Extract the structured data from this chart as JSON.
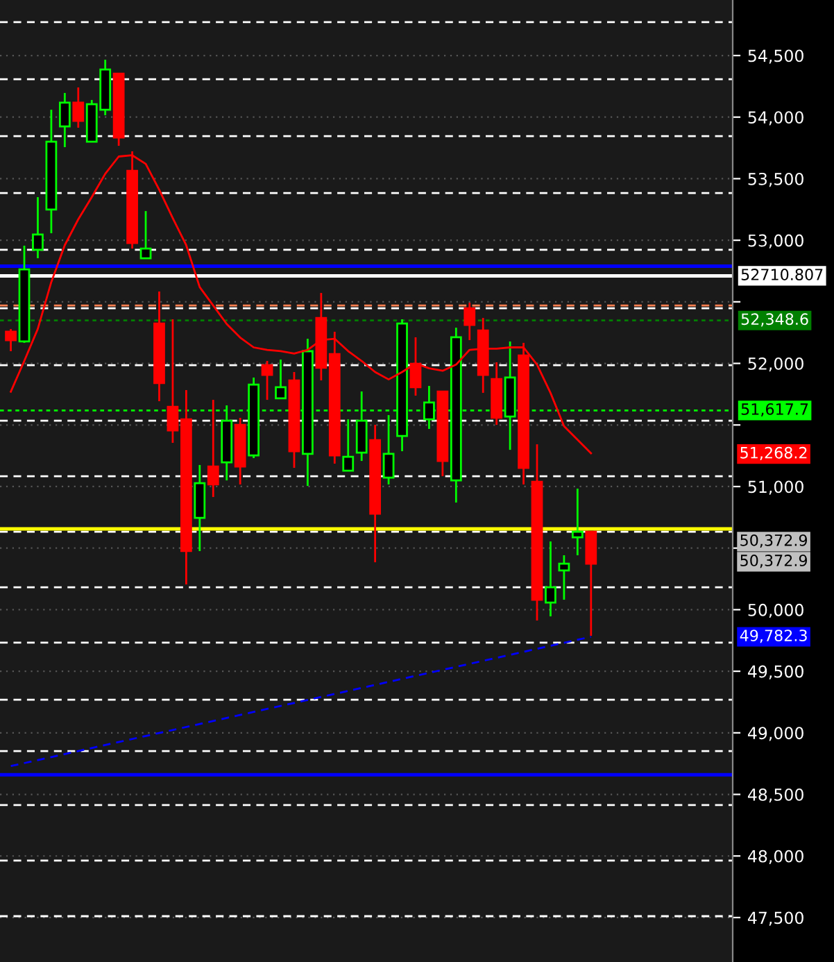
{
  "chart_data": {
    "type": "candlestick",
    "categories": [
      null,
      null,
      null,
      null,
      null,
      null,
      null,
      null,
      null,
      null,
      null,
      null,
      null,
      null,
      null,
      null,
      null,
      null,
      null,
      null,
      null,
      null,
      null,
      null,
      null,
      null,
      null,
      null,
      null,
      null,
      null,
      null,
      null,
      null,
      null,
      null,
      null,
      null,
      null,
      null,
      null,
      null,
      null,
      null,
      null,
      null,
      null,
      null,
      null,
      null,
      null,
      null,
      null,
      null
    ],
    "ohlc": [
      [
        52257,
        52279,
        52099,
        52189
      ],
      [
        52178,
        52956,
        52167,
        52764
      ],
      [
        52922,
        53350,
        52854,
        53046
      ],
      [
        53249,
        54060,
        53057,
        53801
      ],
      [
        53925,
        54196,
        53756,
        54117
      ],
      [
        54117,
        54241,
        53914,
        53970
      ],
      [
        53801,
        54139,
        53801,
        54105
      ],
      [
        54060,
        54466,
        54015,
        54387
      ],
      [
        54353,
        54353,
        53767,
        53835
      ],
      [
        53564,
        53722,
        52933,
        52978
      ],
      [
        52854,
        53237,
        52854,
        52933
      ],
      [
        52324,
        52584,
        51693,
        51840
      ],
      [
        51648,
        52358,
        51355,
        51456
      ],
      [
        51546,
        51783,
        50205,
        50476
      ],
      [
        50746,
        51175,
        50476,
        51028
      ],
      [
        51163,
        51704,
        50915,
        51017
      ],
      [
        51197,
        51659,
        51050,
        51535
      ],
      [
        51501,
        51558,
        51017,
        51163
      ],
      [
        51253,
        51885,
        51231,
        51828
      ],
      [
        51986,
        52020,
        51704,
        51907
      ],
      [
        51716,
        52031,
        51716,
        51806
      ],
      [
        51862,
        51930,
        51152,
        51287
      ],
      [
        51265,
        52200,
        51005,
        52099
      ],
      [
        52369,
        52572,
        51862,
        51964
      ],
      [
        52076,
        52257,
        51186,
        51253
      ],
      [
        51129,
        51546,
        51129,
        51242
      ],
      [
        51276,
        51772,
        51208,
        51535
      ],
      [
        51377,
        51501,
        50385,
        50780
      ],
      [
        51073,
        51580,
        51017,
        51265
      ],
      [
        51411,
        52358,
        51287,
        52324
      ],
      [
        51997,
        52212,
        51738,
        51806
      ],
      [
        51546,
        51817,
        51468,
        51682
      ],
      [
        51772,
        51772,
        51084,
        51208
      ],
      [
        51050,
        52290,
        50870,
        52212
      ],
      [
        52448,
        52493,
        52189,
        52313
      ],
      [
        52268,
        52369,
        51761,
        51907
      ],
      [
        51873,
        52009,
        51501,
        51558
      ],
      [
        51569,
        52178,
        51298,
        51885
      ],
      [
        52065,
        52167,
        51017,
        51152
      ],
      [
        51039,
        51343,
        49912,
        50081
      ],
      [
        50058,
        50554,
        49946,
        50182
      ],
      [
        50318,
        50442,
        50081,
        50374
      ],
      [
        50588,
        50983,
        50442,
        50633
      ],
      [
        50633,
        50633,
        49788,
        50373
      ],
      null,
      null,
      null,
      null,
      null,
      null,
      null,
      null,
      null,
      null
    ],
    "series": [
      {
        "type": "line",
        "color": "#ff0000",
        "values": [
          51770,
          52020,
          52280,
          52660,
          52960,
          53170,
          53350,
          53540,
          53680,
          53690,
          53620,
          53410,
          53180,
          52960,
          52620,
          52470,
          52320,
          52210,
          52130,
          52110,
          52100,
          52080,
          52110,
          52190,
          52200,
          52100,
          52020,
          51930,
          51870,
          51930,
          52000,
          51960,
          51940,
          51990,
          52110,
          52120,
          52120,
          52130,
          52130,
          51990,
          51760,
          51490,
          51380,
          51270,
          null,
          null,
          null,
          null,
          null,
          null,
          null,
          null,
          null,
          null
        ]
      },
      {
        "type": "line",
        "color": "#0000ff",
        "line_style": "dashed",
        "values": [
          48730,
          null,
          null,
          null,
          null,
          null,
          null,
          null,
          null,
          null,
          null,
          null,
          null,
          null,
          null,
          null,
          null,
          null,
          null,
          null,
          null,
          null,
          null,
          null,
          null,
          null,
          null,
          null,
          null,
          null,
          null,
          null,
          null,
          null,
          null,
          null,
          null,
          null,
          null,
          null,
          null,
          null,
          null,
          49780,
          null,
          null,
          null,
          null,
          null,
          null,
          null,
          null,
          null,
          null
        ]
      }
    ],
    "ylim": [
      47139,
      54951
    ],
    "yticks": [
      {
        "value": 47500,
        "label": "47,500"
      },
      {
        "value": 48000,
        "label": "48,000"
      },
      {
        "value": 48500,
        "label": "48,500"
      },
      {
        "value": 49000,
        "label": "49,000"
      },
      {
        "value": 49500,
        "label": "49,500"
      },
      {
        "value": 50000,
        "label": "50,000"
      },
      {
        "value": 50500,
        "label": null
      },
      {
        "value": 51000,
        "label": "51,000"
      },
      {
        "value": 51500,
        "label": null
      },
      {
        "value": 52000,
        "label": "52,000"
      },
      {
        "value": 52500,
        "label": null
      },
      {
        "value": 53000,
        "label": "53,000"
      },
      {
        "value": 53500,
        "label": "53,500"
      },
      {
        "value": 54000,
        "label": "54,000"
      },
      {
        "value": 54500,
        "label": "54,500"
      }
    ],
    "grid": "y",
    "tick_labels": "y",
    "ref_lines": [
      {
        "axis": "y",
        "value": 54771,
        "color": "#ffffff",
        "line_style": "dashed"
      },
      {
        "axis": "y",
        "value": 54308,
        "color": "#ffffff",
        "line_style": "dashed"
      },
      {
        "axis": "y",
        "value": 53846,
        "color": "#ffffff",
        "line_style": "dashed"
      },
      {
        "axis": "y",
        "value": 53384,
        "color": "#ffffff",
        "line_style": "dashed"
      },
      {
        "axis": "y",
        "value": 52922,
        "color": "#ffffff",
        "line_style": "dashed"
      },
      {
        "axis": "y",
        "value": 52448,
        "color": "#ffffff",
        "line_style": "dashed"
      },
      {
        "axis": "y",
        "value": 51986,
        "color": "#ffffff",
        "line_style": "dashed"
      },
      {
        "axis": "y",
        "value": 51535,
        "color": "#ffffff",
        "line_style": "dashed"
      },
      {
        "axis": "y",
        "value": 51084,
        "color": "#ffffff",
        "line_style": "dashed"
      },
      {
        "axis": "y",
        "value": 50633,
        "color": "#ffffff",
        "line_style": "dashed"
      },
      {
        "axis": "y",
        "value": 50182,
        "color": "#ffffff",
        "line_style": "dashed"
      },
      {
        "axis": "y",
        "value": 49732,
        "color": "#ffffff",
        "line_style": "dashed"
      },
      {
        "axis": "y",
        "value": 49269,
        "color": "#ffffff",
        "line_style": "dashed"
      },
      {
        "axis": "y",
        "value": 48852,
        "color": "#ffffff",
        "line_style": "dashed"
      },
      {
        "axis": "y",
        "value": 48413,
        "color": "#ffffff",
        "line_style": "dashed"
      },
      {
        "axis": "y",
        "value": 47962,
        "color": "#ffffff",
        "line_style": "dashed"
      },
      {
        "axis": "y",
        "value": 47511,
        "color": "#ffffff",
        "line_style": "dashed"
      },
      {
        "axis": "y",
        "value": 52470,
        "color": "#ff7f50",
        "line_style": "dashed"
      },
      {
        "axis": "y",
        "value": 52790,
        "color": "#0000ff",
        "line_style": "solid"
      },
      {
        "axis": "y",
        "value": 48660,
        "color": "#0000ff",
        "line_style": "solid"
      },
      {
        "axis": "y",
        "value": 50656,
        "color": "#ffff00",
        "line_style": "solid"
      },
      {
        "axis": "y",
        "value": 52710.807,
        "label": "52710.807",
        "color": "#ffffff",
        "line_style": "solid"
      },
      {
        "axis": "y",
        "value": 52348.6,
        "label": "52,348.6",
        "color": "#008000",
        "line_style": "dotted"
      },
      {
        "axis": "y",
        "value": 51617.7,
        "label": "51,617.7",
        "color": "#00ff00",
        "line_style": "dotted"
      }
    ],
    "annotations": [
      "51,268.2",
      "50,372.9",
      "50,372.9",
      "49,782.3"
    ]
  }
}
